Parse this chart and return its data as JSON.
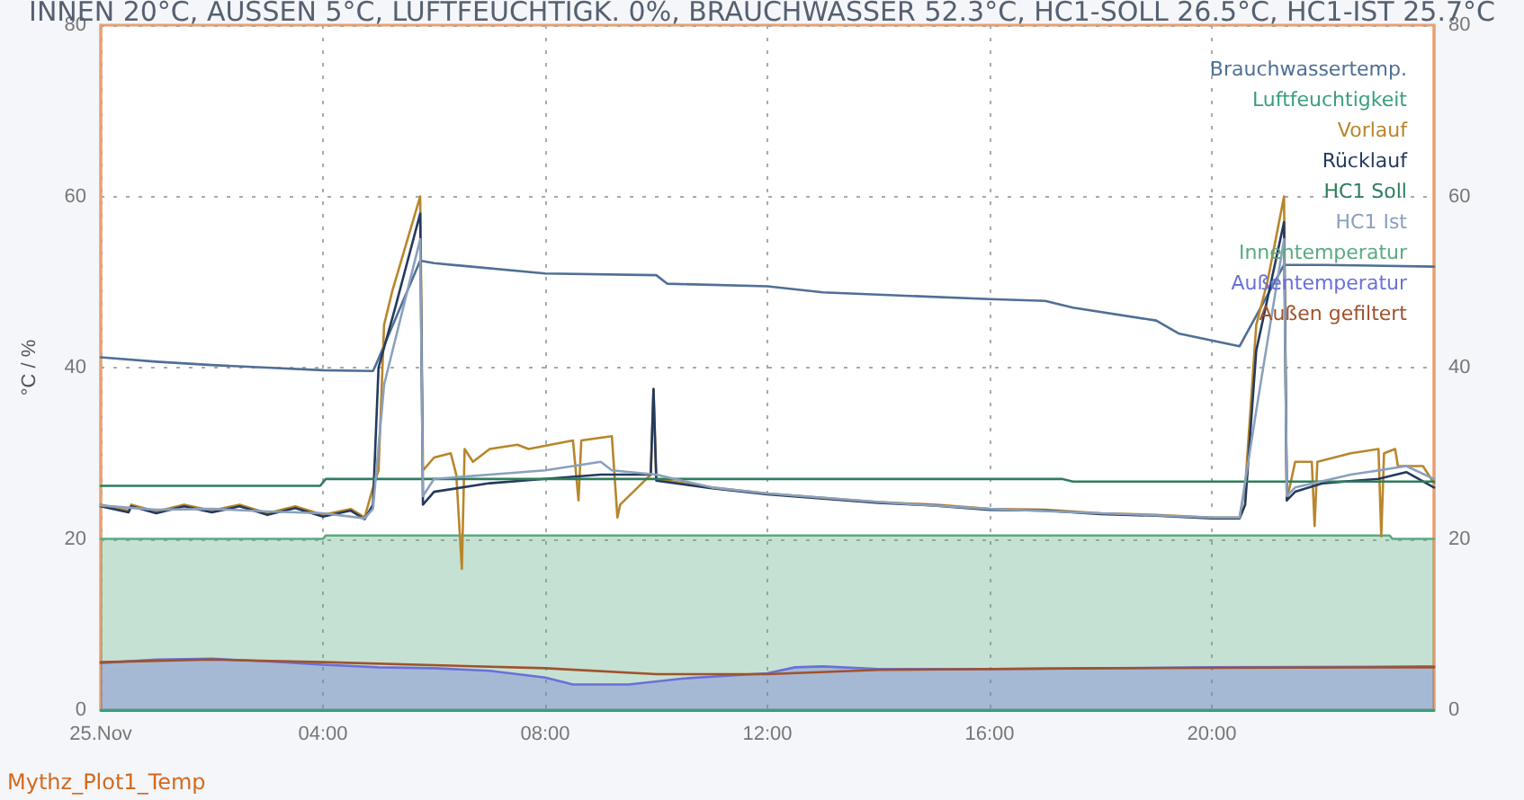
{
  "chart_data": {
    "type": "line",
    "title": "INNEN 20°C, AUSSEN 5°C, LUFTFEUCHTIGK. 0%, BRAUCHWASSER 52.3°C, HC1-SOLL 26.5°C, HC1-IST 25.7°C",
    "ylabel": "°C / %",
    "annotations": [
      "Mythz_Plot1_Temp"
    ],
    "xlim": [
      0,
      24
    ],
    "xticks": [
      {
        "value": 0,
        "label": "25.Nov"
      },
      {
        "value": 4,
        "label": "04:00"
      },
      {
        "value": 8,
        "label": "08:00"
      },
      {
        "value": 12,
        "label": "12:00"
      },
      {
        "value": 16,
        "label": "16:00"
      },
      {
        "value": 20,
        "label": "20:00"
      }
    ],
    "ylim": [
      0,
      80
    ],
    "yticks": [
      0,
      20,
      40,
      60,
      80
    ],
    "y2lim": [
      0,
      80
    ],
    "y2ticks": [
      0,
      20,
      40,
      60,
      80
    ],
    "grid": true,
    "legend": "top right",
    "marker": "none",
    "line_style": "solid",
    "series": [
      {
        "name": "Brauchwassertemp.",
        "color": "#4f6f96",
        "x": [
          0,
          1,
          2,
          3,
          4,
          4.9,
          4.95,
          5.75,
          6,
          8,
          10,
          10.2,
          12,
          13,
          16,
          17,
          17.5,
          19,
          19.4,
          20.5,
          21.3,
          22,
          24
        ],
        "values": [
          41.2,
          40.7,
          40.3,
          40,
          39.7,
          39.6,
          40.3,
          52.5,
          52.2,
          51,
          50.8,
          49.8,
          49.5,
          48.8,
          48,
          47.8,
          47,
          45.5,
          44,
          42.5,
          52,
          52,
          51.8
        ]
      },
      {
        "name": "Luftfeuchtigkeit",
        "color": "#3aa07a",
        "x": [
          0,
          24
        ],
        "values": [
          0,
          0
        ]
      },
      {
        "name": "Vorlauf",
        "color": "#b8862b",
        "x": [
          0,
          0.5,
          0.55,
          1,
          1.5,
          2,
          2.5,
          3,
          3.5,
          4,
          4.5,
          4.75,
          4.9,
          5.0,
          5.1,
          5.25,
          5.75,
          5.8,
          6,
          6.3,
          6.4,
          6.5,
          6.55,
          6.7,
          7,
          7.5,
          7.7,
          8.5,
          8.6,
          8.65,
          9.2,
          9.3,
          9.35,
          9.9,
          9.95,
          10,
          11,
          12,
          13,
          14,
          15,
          16,
          17,
          18,
          19,
          20,
          20.5,
          20.6,
          20.8,
          21,
          21.3,
          21.35,
          21.5,
          21.8,
          21.85,
          21.9,
          22.5,
          23,
          23.05,
          23.1,
          23.3,
          23.35,
          23.8,
          24
        ],
        "values": [
          24,
          23.3,
          24,
          23.2,
          24,
          23.3,
          24,
          23,
          23.8,
          22.8,
          23.5,
          22.5,
          26,
          28,
          45,
          49,
          60,
          28,
          29.5,
          30,
          27.5,
          16.5,
          30.5,
          29,
          30.5,
          31,
          30.5,
          31.5,
          24.5,
          31.5,
          32,
          22.5,
          24,
          27.5,
          37.5,
          27,
          26,
          25.3,
          24.8,
          24.3,
          24,
          23.5,
          23.4,
          23,
          22.8,
          22.5,
          22.5,
          26,
          45,
          50,
          60,
          24.5,
          29,
          29,
          21.5,
          29,
          30,
          30.5,
          20.3,
          30,
          30.5,
          28.5,
          28.5,
          26.5
        ]
      },
      {
        "name": "Rücklauf",
        "color": "#243a5e",
        "x": [
          0,
          0.5,
          0.55,
          1,
          1.5,
          2,
          2.5,
          3,
          3.5,
          4,
          4.5,
          4.75,
          4.9,
          5.0,
          5.3,
          5.75,
          5.8,
          6,
          7,
          8,
          9,
          9.9,
          9.95,
          10,
          11,
          12,
          13,
          14,
          15,
          16,
          17,
          18,
          19,
          20,
          20.5,
          20.6,
          20.8,
          21.3,
          21.35,
          21.5,
          22,
          23,
          23.5,
          24
        ],
        "values": [
          23.8,
          23.1,
          23.8,
          23,
          23.8,
          23.1,
          23.8,
          22.8,
          23.6,
          22.6,
          23.3,
          22.3,
          24,
          40,
          47,
          58,
          24,
          25.5,
          26.5,
          27,
          27.5,
          27.5,
          37.5,
          26.8,
          25.9,
          25.2,
          24.7,
          24.2,
          23.9,
          23.4,
          23.3,
          22.9,
          22.7,
          22.4,
          22.4,
          24,
          42,
          57,
          24.5,
          25.5,
          26.5,
          27,
          27.8,
          26
        ]
      },
      {
        "name": "HC1 Soll",
        "color": "#2e7d5b",
        "x": [
          0,
          3.95,
          4.05,
          17.3,
          17.5,
          24
        ],
        "values": [
          26.2,
          26.2,
          27,
          27,
          26.7,
          26.7
        ]
      },
      {
        "name": "HC1 Ist",
        "color": "#8aa0bd",
        "x": [
          0,
          1,
          2,
          3,
          4,
          4.75,
          4.9,
          5.1,
          5.75,
          5.8,
          6,
          7,
          8,
          9,
          9.2,
          10,
          11,
          12,
          14,
          16,
          18,
          20,
          20.5,
          20.8,
          21.3,
          21.35,
          21.5,
          22.5,
          23.5,
          24
        ],
        "values": [
          23.9,
          23.4,
          23.5,
          23.2,
          23,
          22.4,
          23.5,
          38,
          55,
          25,
          27,
          27.5,
          28,
          29,
          28,
          27.5,
          26,
          25.3,
          24.3,
          23.5,
          23,
          22.5,
          22.5,
          35,
          55,
          25,
          26,
          27.5,
          28.5,
          27
        ]
      },
      {
        "name": "Innentemperatur",
        "color": "#5aaa80",
        "type": "area",
        "x": [
          0,
          4,
          4.05,
          23.2,
          23.25,
          24
        ],
        "values": [
          20,
          20,
          20.4,
          20.4,
          20,
          20
        ]
      },
      {
        "name": "Außentemperatur",
        "color": "#6a70d8",
        "type": "area",
        "x": [
          0,
          1,
          2,
          3,
          4,
          5,
          6,
          7,
          8,
          8.5,
          9.5,
          10.5,
          12,
          12.5,
          13,
          14,
          16,
          20,
          24
        ],
        "values": [
          5.5,
          5.9,
          6,
          5.7,
          5.3,
          5,
          4.9,
          4.6,
          3.8,
          3,
          3,
          3.7,
          4.3,
          5,
          5.1,
          4.8,
          4.8,
          5,
          5.1
        ]
      },
      {
        "name": "Außen gefiltert",
        "color": "#a0522d",
        "x": [
          0,
          2,
          4,
          8,
          10,
          12,
          14,
          18,
          24
        ],
        "values": [
          5.6,
          5.9,
          5.6,
          4.9,
          4.2,
          4.2,
          4.7,
          4.9,
          5.0
        ]
      }
    ]
  }
}
